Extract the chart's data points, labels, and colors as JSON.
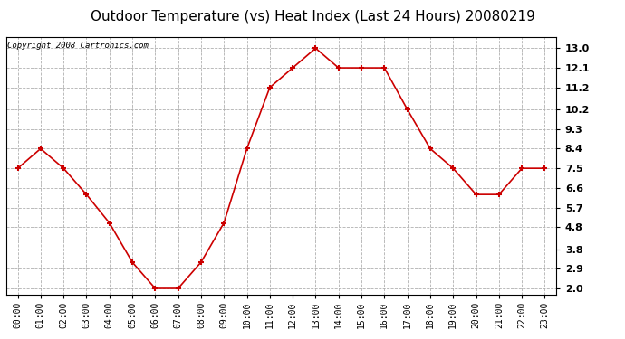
{
  "title": "Outdoor Temperature (vs) Heat Index (Last 24 Hours) 20080219",
  "copyright": "Copyright 2008 Cartronics.com",
  "x_labels": [
    "00:00",
    "01:00",
    "02:00",
    "03:00",
    "04:00",
    "05:00",
    "06:00",
    "07:00",
    "08:00",
    "09:00",
    "10:00",
    "11:00",
    "12:00",
    "13:00",
    "14:00",
    "15:00",
    "16:00",
    "17:00",
    "18:00",
    "19:00",
    "20:00",
    "21:00",
    "22:00",
    "23:00"
  ],
  "y_values": [
    7.5,
    8.4,
    7.5,
    6.3,
    5.0,
    3.2,
    2.0,
    2.0,
    3.2,
    5.0,
    8.4,
    11.2,
    12.1,
    13.0,
    12.1,
    12.1,
    12.1,
    10.2,
    8.4,
    7.5,
    6.3,
    6.3,
    7.5,
    7.5
  ],
  "line_color": "#cc0000",
  "marker_color": "#cc0000",
  "bg_color": "#ffffff",
  "plot_bg_color": "#ffffff",
  "grid_color": "#b0b0b0",
  "y_ticks": [
    2.0,
    2.9,
    3.8,
    4.8,
    5.7,
    6.6,
    7.5,
    8.4,
    9.3,
    10.2,
    11.2,
    12.1,
    13.0
  ],
  "ylim": [
    1.7,
    13.5
  ],
  "title_fontsize": 11,
  "copyright_fontsize": 6.5,
  "tick_fontsize": 8,
  "xtick_fontsize": 7
}
